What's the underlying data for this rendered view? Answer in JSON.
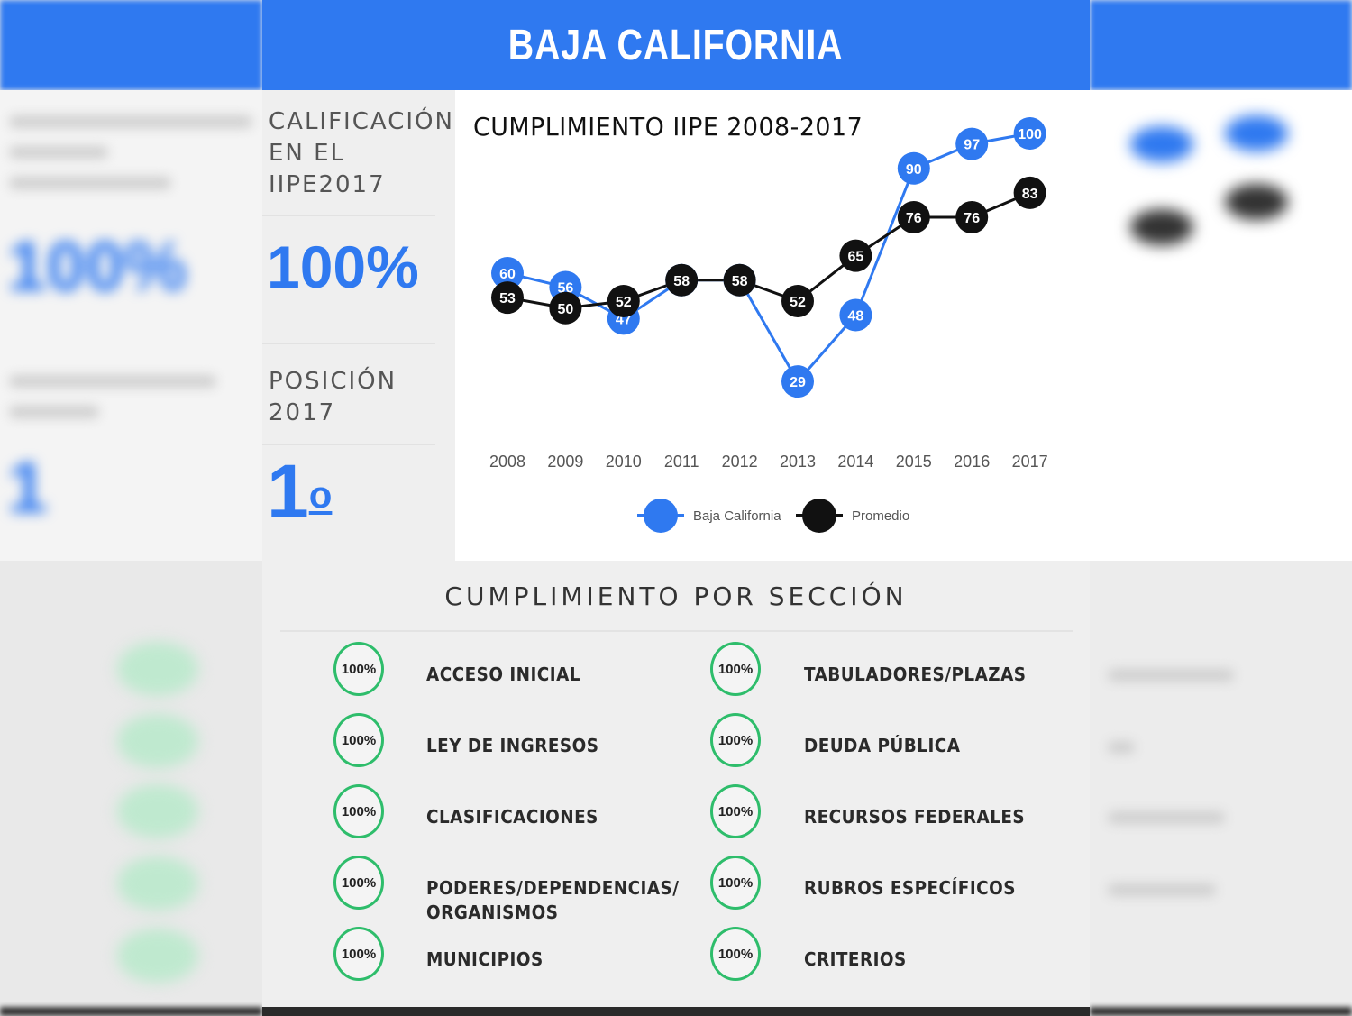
{
  "header": {
    "title": "BAJA CALIFORNIA"
  },
  "summary": {
    "score_label": "CALIFICACIÓN EN EL IIPE2017",
    "score_label_lines": [
      "CALIFICACIÓN",
      "EN EL",
      "IIPE2017"
    ],
    "score_value": "100%",
    "rank_label_lines": [
      "POSICIÓN",
      "2017"
    ],
    "rank_value": "1",
    "rank_suffix": "o"
  },
  "colors": {
    "brand_blue": "#2f79f0",
    "average_black": "#111111",
    "badge_green": "#2ebd6b"
  },
  "chart_data": {
    "type": "line",
    "title": "CUMPLIMIENTO IIPE 2008-2017",
    "categories": [
      "2008",
      "2009",
      "2010",
      "2011",
      "2012",
      "2013",
      "2014",
      "2015",
      "2016",
      "2017"
    ],
    "series": [
      {
        "name": "Baja California",
        "color": "#2f79f0",
        "values": [
          60,
          56,
          47,
          58,
          58,
          29,
          48,
          90,
          97,
          100
        ]
      },
      {
        "name": "Promedio",
        "color": "#111111",
        "values": [
          53,
          50,
          52,
          58,
          58,
          52,
          65,
          76,
          76,
          83
        ]
      }
    ],
    "ylim": [
      20,
      100
    ],
    "grid": false,
    "legend_position": "bottom-center"
  },
  "sections": {
    "title": "CUMPLIMIENTO POR SECCIÓN",
    "left": [
      {
        "value": "100%",
        "label": "ACCESO INICIAL"
      },
      {
        "value": "100%",
        "label": "LEY DE INGRESOS"
      },
      {
        "value": "100%",
        "label": "CLASIFICACIONES"
      },
      {
        "value": "100%",
        "label": "PODERES/DEPENDENCIAS/\nORGANISMOS"
      },
      {
        "value": "100%",
        "label": "MUNICIPIOS"
      }
    ],
    "right": [
      {
        "value": "100%",
        "label": "TABULADORES/PLAZAS"
      },
      {
        "value": "100%",
        "label": "DEUDA PÚBLICA"
      },
      {
        "value": "100%",
        "label": "RECURSOS FEDERALES"
      },
      {
        "value": "100%",
        "label": "RUBROS ESPECÍFICOS"
      },
      {
        "value": "100%",
        "label": "CRITERIOS"
      }
    ]
  }
}
